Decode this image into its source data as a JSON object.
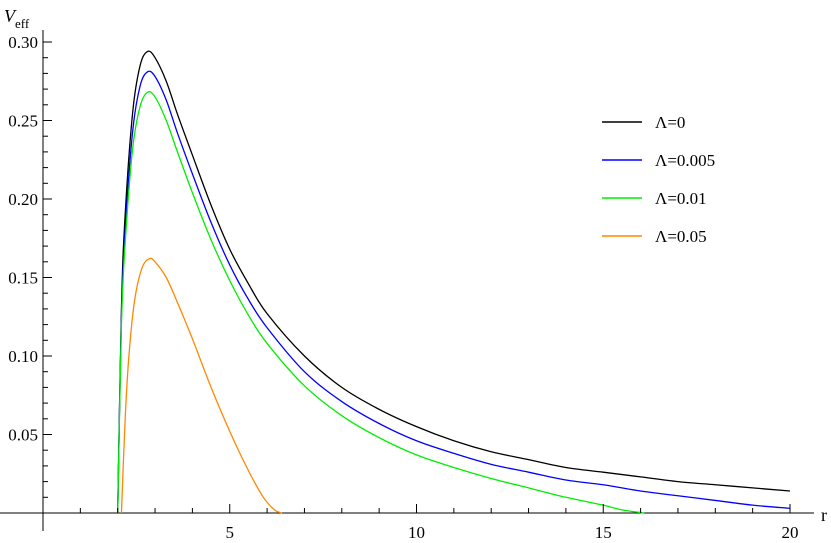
{
  "chart_data": {
    "type": "line",
    "title": "",
    "xlabel": "r",
    "ylabel_main": "V",
    "ylabel_sub": "eff",
    "xlim": [
      0,
      20
    ],
    "ylim": [
      0,
      0.3
    ],
    "x_ticks": [
      5,
      10,
      15,
      20
    ],
    "x_tick_labels": [
      "5",
      "10",
      "15",
      "20"
    ],
    "y_ticks": [
      0.05,
      0.1,
      0.15,
      0.2,
      0.25,
      0.3
    ],
    "y_tick_labels": [
      "0.05",
      "0.10",
      "0.15",
      "0.20",
      "0.25",
      "0.30"
    ],
    "grid": false,
    "legend_position": "right",
    "series": [
      {
        "name": "Λ=0",
        "color": "#000000",
        "points": [
          [
            2.0,
            0.0
          ],
          [
            2.1,
            0.13
          ],
          [
            2.2,
            0.19
          ],
          [
            2.4,
            0.255
          ],
          [
            2.6,
            0.285
          ],
          [
            2.8,
            0.294
          ],
          [
            3.0,
            0.29
          ],
          [
            3.3,
            0.275
          ],
          [
            3.6,
            0.254
          ],
          [
            4.0,
            0.228
          ],
          [
            4.5,
            0.196
          ],
          [
            5.0,
            0.168
          ],
          [
            5.5,
            0.146
          ],
          [
            6.0,
            0.127
          ],
          [
            7.0,
            0.1
          ],
          [
            8.0,
            0.08
          ],
          [
            9.0,
            0.066
          ],
          [
            10.0,
            0.055
          ],
          [
            11.0,
            0.046
          ],
          [
            12.0,
            0.039
          ],
          [
            13.0,
            0.034
          ],
          [
            14.0,
            0.029
          ],
          [
            15.0,
            0.026
          ],
          [
            16.0,
            0.023
          ],
          [
            17.0,
            0.02
          ],
          [
            18.0,
            0.018
          ],
          [
            19.0,
            0.016
          ],
          [
            20.0,
            0.014
          ]
        ]
      },
      {
        "name": "Λ=0.005",
        "color": "#0000ff",
        "points": [
          [
            2.0,
            0.0
          ],
          [
            2.1,
            0.125
          ],
          [
            2.2,
            0.18
          ],
          [
            2.4,
            0.243
          ],
          [
            2.6,
            0.272
          ],
          [
            2.8,
            0.281
          ],
          [
            3.0,
            0.278
          ],
          [
            3.3,
            0.263
          ],
          [
            3.6,
            0.242
          ],
          [
            4.0,
            0.216
          ],
          [
            4.5,
            0.185
          ],
          [
            5.0,
            0.158
          ],
          [
            5.5,
            0.136
          ],
          [
            6.0,
            0.118
          ],
          [
            7.0,
            0.09
          ],
          [
            8.0,
            0.071
          ],
          [
            9.0,
            0.057
          ],
          [
            10.0,
            0.046
          ],
          [
            11.0,
            0.038
          ],
          [
            12.0,
            0.031
          ],
          [
            13.0,
            0.026
          ],
          [
            14.0,
            0.021
          ],
          [
            15.0,
            0.018
          ],
          [
            16.0,
            0.014
          ],
          [
            17.0,
            0.011
          ],
          [
            18.0,
            0.008
          ],
          [
            19.0,
            0.005
          ],
          [
            20.0,
            0.003
          ]
        ]
      },
      {
        "name": "Λ=0.01",
        "color": "#00ee00",
        "points": [
          [
            2.0,
            0.0
          ],
          [
            2.1,
            0.12
          ],
          [
            2.2,
            0.172
          ],
          [
            2.4,
            0.232
          ],
          [
            2.6,
            0.259
          ],
          [
            2.8,
            0.268
          ],
          [
            3.0,
            0.265
          ],
          [
            3.3,
            0.25
          ],
          [
            3.6,
            0.23
          ],
          [
            4.0,
            0.204
          ],
          [
            4.5,
            0.174
          ],
          [
            5.0,
            0.148
          ],
          [
            5.5,
            0.126
          ],
          [
            6.0,
            0.108
          ],
          [
            7.0,
            0.081
          ],
          [
            8.0,
            0.062
          ],
          [
            9.0,
            0.048
          ],
          [
            10.0,
            0.037
          ],
          [
            11.0,
            0.029
          ],
          [
            12.0,
            0.022
          ],
          [
            13.0,
            0.016
          ],
          [
            14.0,
            0.01
          ],
          [
            15.0,
            0.005
          ],
          [
            15.5,
            0.002
          ],
          [
            16.1,
            0.0
          ]
        ]
      },
      {
        "name": "Λ=0.05",
        "color": "#ff8800",
        "points": [
          [
            2.1,
            0.0
          ],
          [
            2.2,
            0.06
          ],
          [
            2.3,
            0.1
          ],
          [
            2.45,
            0.135
          ],
          [
            2.65,
            0.156
          ],
          [
            2.85,
            0.162
          ],
          [
            3.0,
            0.16
          ],
          [
            3.3,
            0.15
          ],
          [
            3.6,
            0.134
          ],
          [
            4.0,
            0.111
          ],
          [
            4.5,
            0.08
          ],
          [
            5.0,
            0.052
          ],
          [
            5.5,
            0.027
          ],
          [
            5.9,
            0.01
          ],
          [
            6.2,
            0.002
          ],
          [
            6.4,
            0.0
          ]
        ]
      }
    ]
  }
}
